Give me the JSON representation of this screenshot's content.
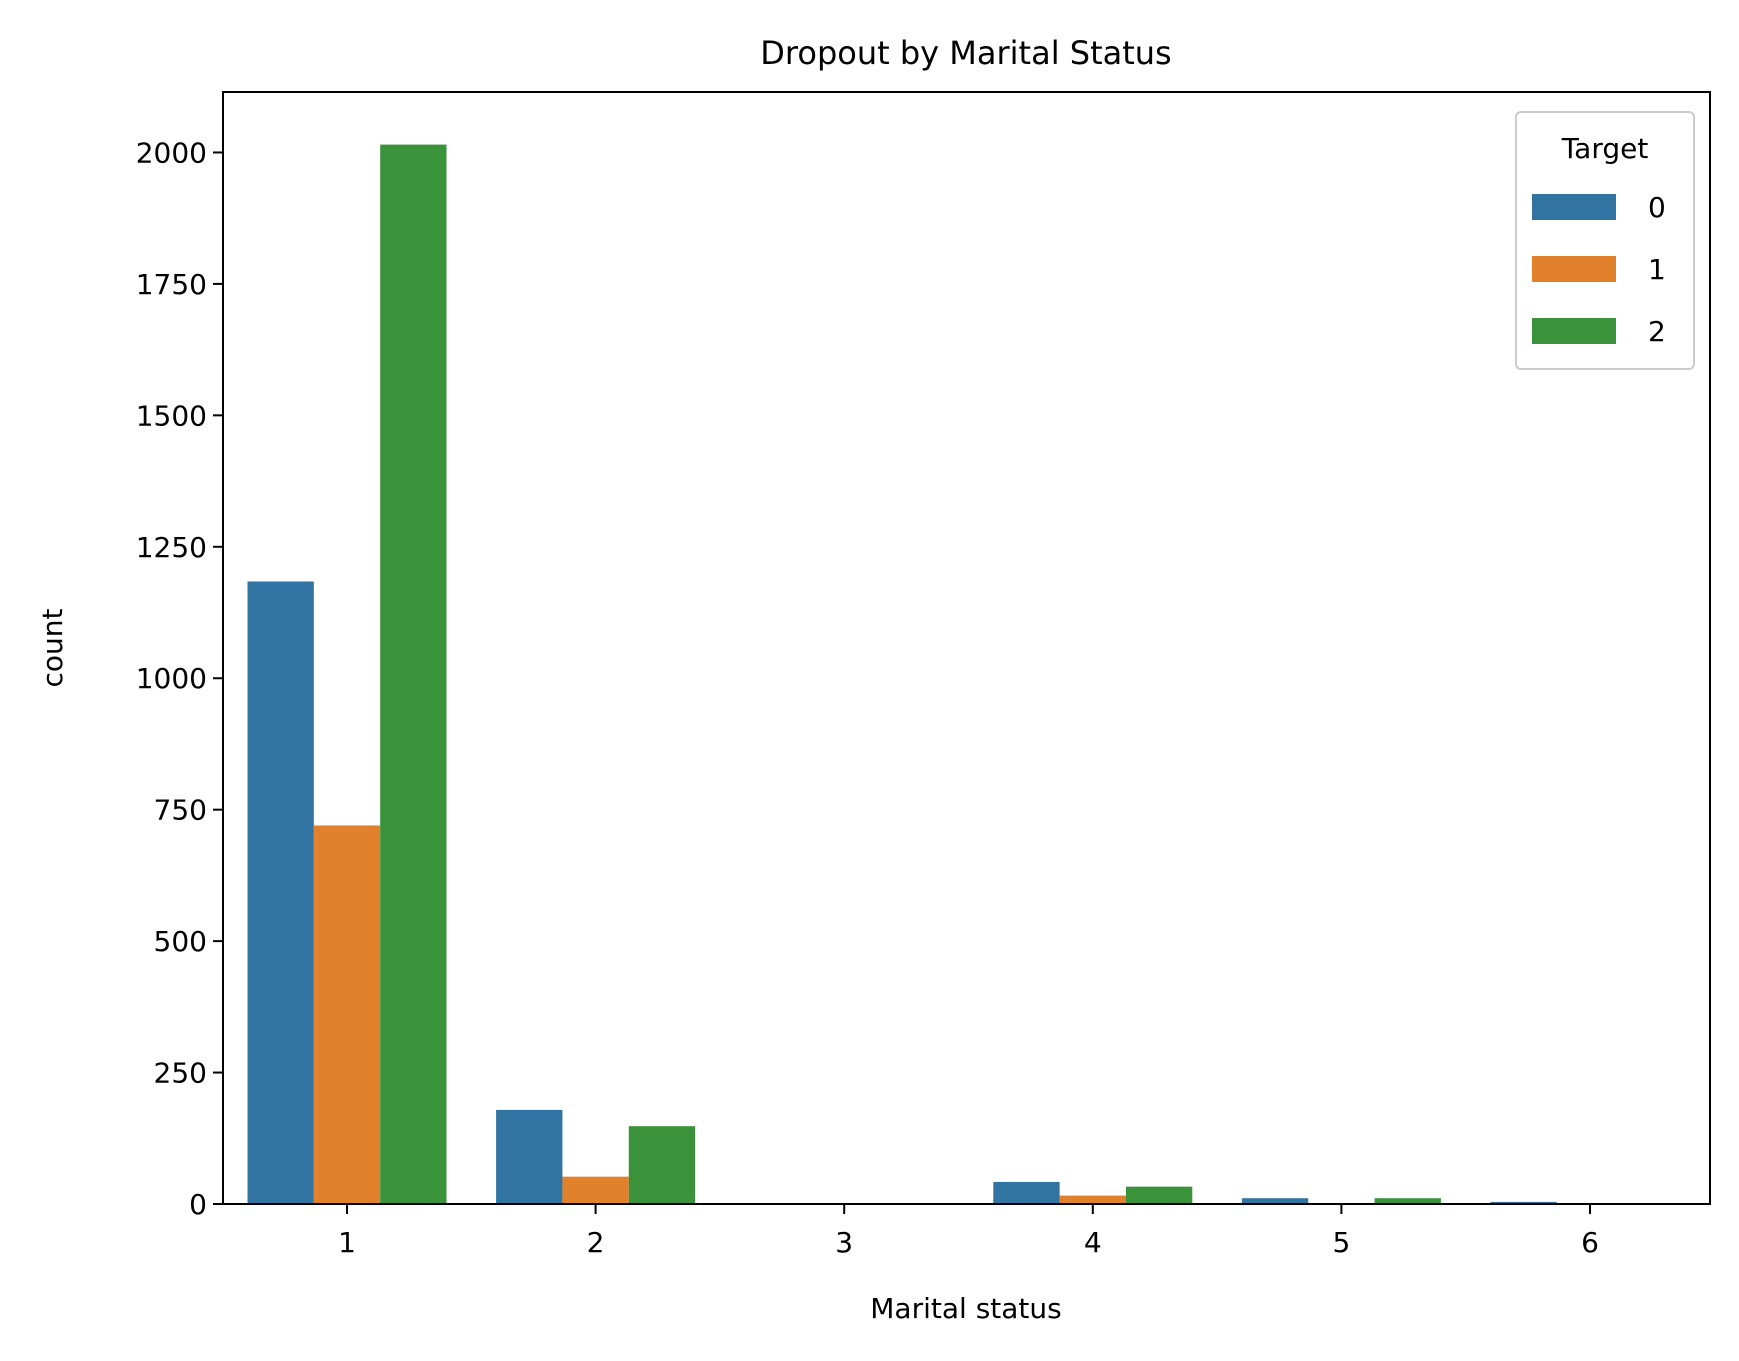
{
  "chart_data": {
    "type": "bar",
    "title": "Dropout by Marital Status",
    "xlabel": "Marital status",
    "ylabel": "count",
    "categories": [
      "1",
      "2",
      "3",
      "4",
      "5",
      "6"
    ],
    "series": [
      {
        "name": "0",
        "color": "#3274a1",
        "values": [
          1184,
          179,
          0,
          42,
          11,
          4
        ]
      },
      {
        "name": "1",
        "color": "#e1812c",
        "values": [
          720,
          52,
          0,
          16,
          0,
          0
        ]
      },
      {
        "name": "2",
        "color": "#3a923a",
        "values": [
          2015,
          148,
          0,
          33,
          11,
          0
        ]
      }
    ],
    "ylim": [
      0,
      2115
    ],
    "yticks": [
      0,
      250,
      500,
      750,
      1000,
      1250,
      1500,
      1750,
      2000
    ],
    "ytick_labels": [
      "0",
      "250",
      "500",
      "750",
      "1000",
      "1250",
      "1500",
      "1750",
      "2000"
    ],
    "legend": {
      "title": "Target",
      "placement": "top-right"
    },
    "grid": false
  }
}
